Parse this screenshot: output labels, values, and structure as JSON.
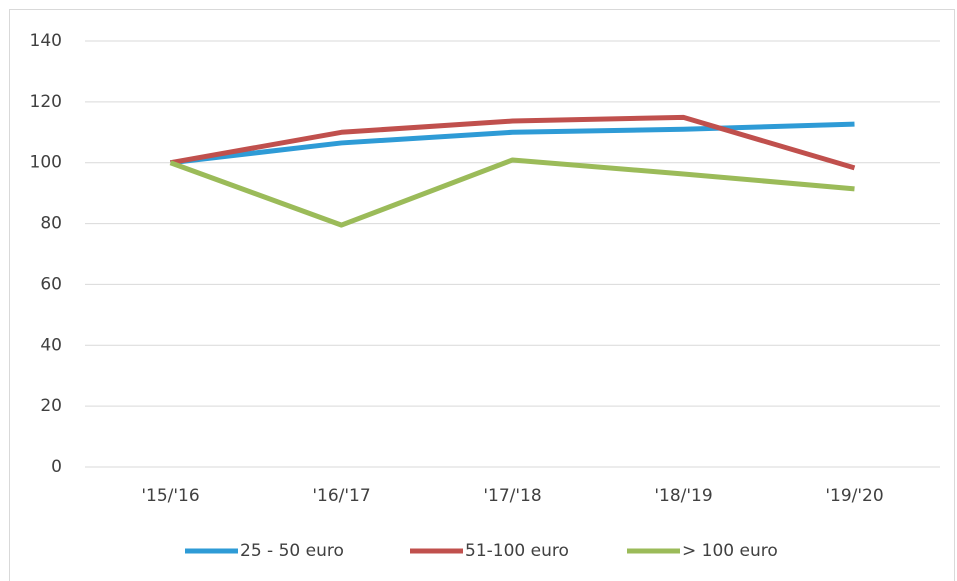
{
  "chart_data": {
    "type": "line",
    "categories": [
      "'15/'16",
      "'16/'17",
      "'17/'18",
      "'18/'19",
      "'19/'20"
    ],
    "series": [
      {
        "name": "25 - 50 euro",
        "color": "#2e9bd6",
        "values": [
          100,
          106.5,
          110,
          111,
          112.7
        ]
      },
      {
        "name": "51-100 euro",
        "color": "#c0504d",
        "values": [
          100,
          110,
          113.7,
          114.9,
          98.3
        ]
      },
      {
        "name": "> 100 euro",
        "color": "#9bbb59",
        "values": [
          100,
          79.5,
          100.9,
          96.3,
          91.4
        ]
      }
    ],
    "ylim": [
      0,
      140
    ],
    "yticks": [
      0,
      20,
      40,
      60,
      80,
      100,
      120,
      140
    ],
    "grid": true,
    "legend": "bottom"
  }
}
